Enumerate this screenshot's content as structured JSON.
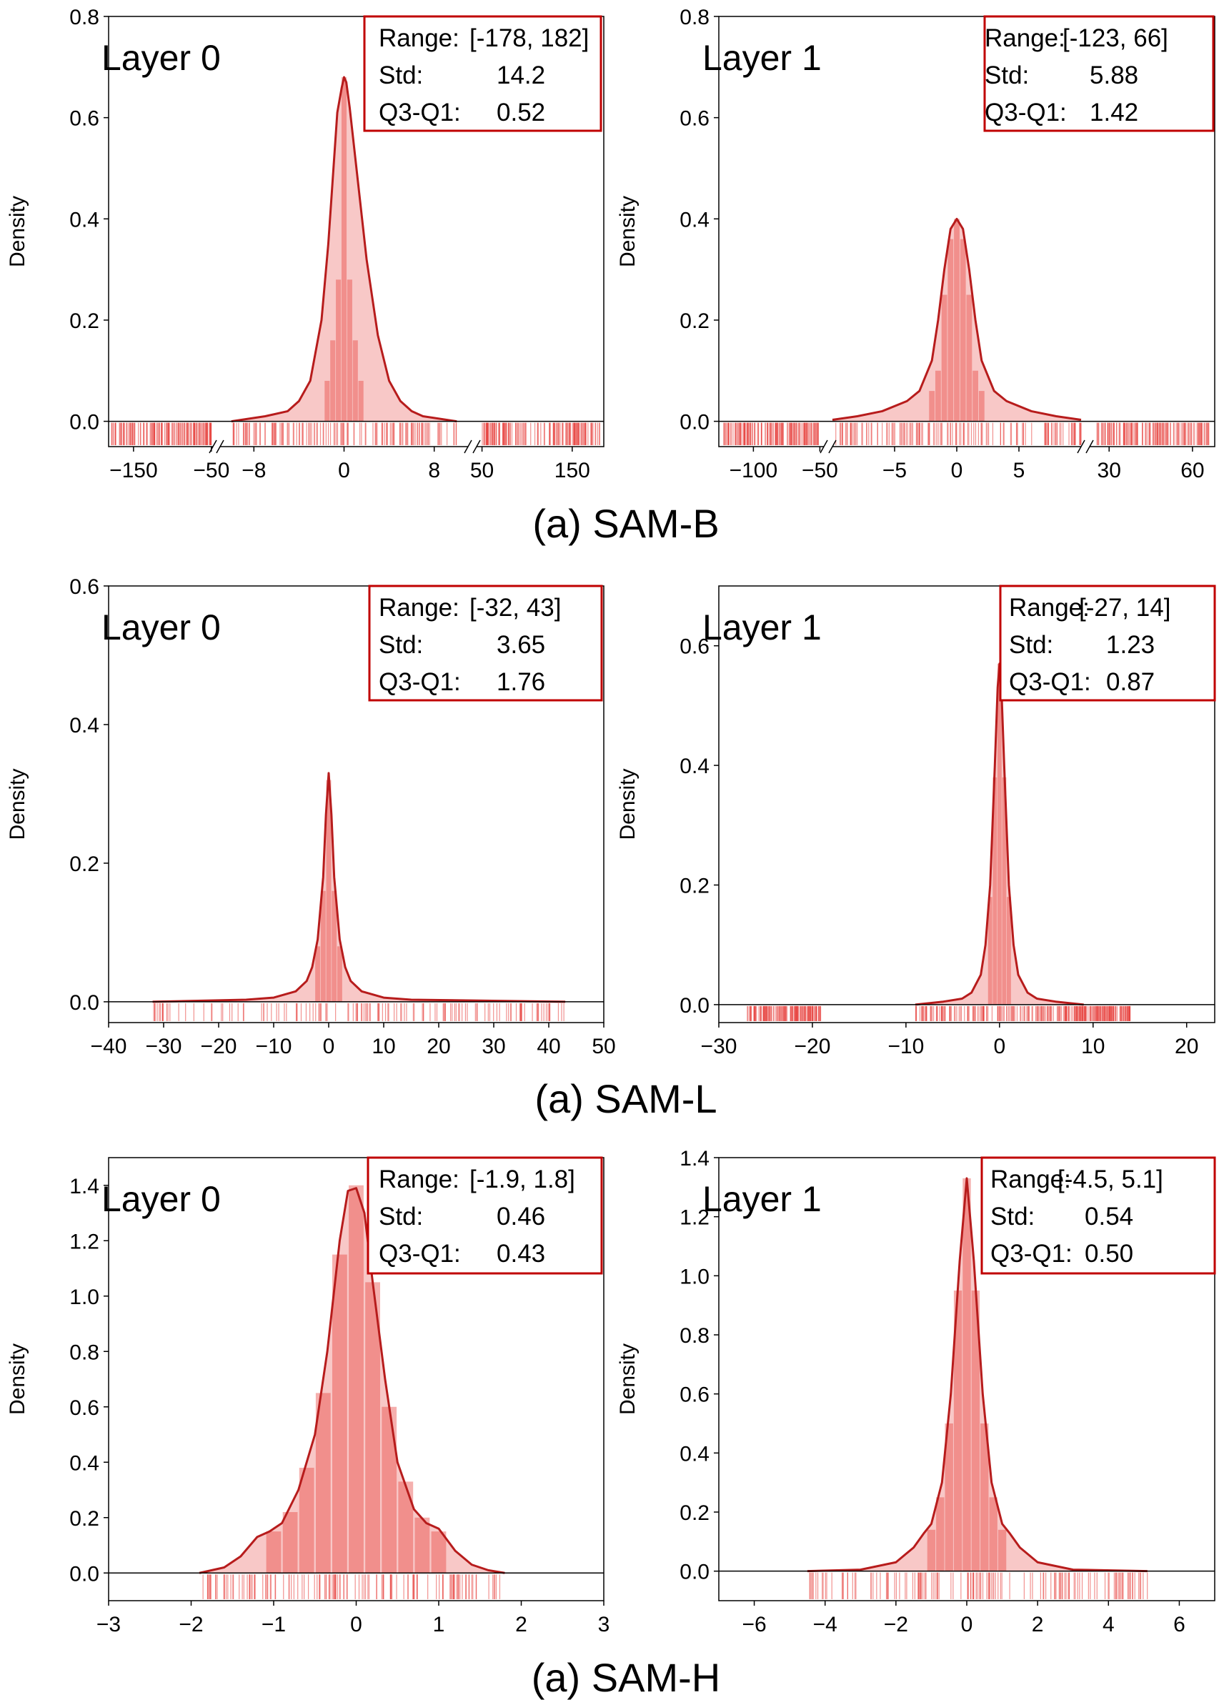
{
  "colors": {
    "curve": "#b71c1c",
    "fill": "#e53935",
    "rug": "#e53935",
    "box": "#c00000",
    "axis": "#000000"
  },
  "captions": [
    "(a) SAM-B",
    "(a) SAM-L",
    "(a) SAM-H"
  ],
  "chart_data": [
    {
      "id": "sam-b-layer-0",
      "type": "histogram-kde-rug",
      "title": "Layer 0",
      "ylabel": "Density",
      "ylim": [
        -0.05,
        0.8
      ],
      "yticks": [
        "0.0",
        "0.2",
        "0.4",
        "0.6",
        "0.8"
      ],
      "ytick_values": [
        0,
        0.2,
        0.4,
        0.6,
        0.8
      ],
      "broken_axis": true,
      "xsegments": [
        {
          "range": [
            -182,
            -48
          ],
          "ticks": [
            -150,
            -50
          ],
          "labels": [
            "−150",
            "−50"
          ]
        },
        {
          "range": [
            -11,
            11
          ],
          "ticks": [
            -8,
            0,
            8
          ],
          "labels": [
            "−8",
            "0",
            "8"
          ]
        },
        {
          "range": [
            44,
            185
          ],
          "ticks": [
            50,
            150
          ],
          "labels": [
            "50",
            "150"
          ]
        }
      ],
      "stats": {
        "range_label": "Range:",
        "range": "[-178, 182]",
        "std_label": "Std:",
        "std": "14.2",
        "iqr_label": "Q3-Q1:",
        "iqr": "0.52"
      },
      "kde": {
        "x": [
          -10,
          -7,
          -5,
          -4,
          -3,
          -2,
          -1.4,
          -1,
          -0.6,
          -0.2,
          0,
          0.2,
          0.5,
          1,
          1.5,
          2,
          3,
          4,
          5,
          6,
          7,
          10
        ],
        "y": [
          0,
          0.01,
          0.02,
          0.04,
          0.08,
          0.2,
          0.35,
          0.48,
          0.61,
          0.66,
          0.68,
          0.67,
          0.62,
          0.52,
          0.42,
          0.32,
          0.17,
          0.08,
          0.04,
          0.02,
          0.01,
          0
        ]
      },
      "hist": {
        "x": [
          -1.5,
          -1,
          -0.5,
          0,
          0.5,
          1,
          1.5
        ],
        "y": [
          0.08,
          0.16,
          0.28,
          0.68,
          0.28,
          0.16,
          0.08
        ],
        "w": 0.45
      },
      "rug": [
        [
          -178,
          -50
        ],
        [
          -10,
          10
        ],
        [
          50,
          182
        ]
      ]
    },
    {
      "id": "sam-b-layer-1",
      "type": "histogram-kde-rug",
      "title": "Layer 1",
      "ylabel": "Density",
      "ylim": [
        -0.05,
        0.8
      ],
      "yticks": [
        "0.0",
        "0.2",
        "0.4",
        "0.6",
        "0.8"
      ],
      "ytick_values": [
        0,
        0.2,
        0.4,
        0.6,
        0.8
      ],
      "broken_axis": true,
      "xsegments": [
        {
          "range": [
            -126,
            -47
          ],
          "ticks": [
            -100,
            -50
          ],
          "labels": [
            "−100",
            "−50"
          ]
        },
        {
          "range": [
            -10,
            10
          ],
          "ticks": [
            -5,
            0,
            5
          ],
          "labels": [
            "−5",
            "0",
            "5"
          ]
        },
        {
          "range": [
            23,
            68
          ],
          "ticks": [
            30,
            60
          ],
          "labels": [
            "30",
            "60"
          ]
        }
      ],
      "stats": {
        "range_label": "Range:",
        "range": "[-123, 66]",
        "std_label": "Std:",
        "std": "5.88",
        "iqr_label": "Q3-Q1:",
        "iqr": "1.42"
      },
      "kde": {
        "x": [
          -10,
          -8,
          -6,
          -4,
          -3,
          -2,
          -1.5,
          -1,
          -0.5,
          0,
          0.5,
          1,
          1.5,
          2,
          3,
          4,
          6,
          8,
          10
        ],
        "y": [
          0.003,
          0.01,
          0.02,
          0.04,
          0.06,
          0.12,
          0.2,
          0.3,
          0.38,
          0.4,
          0.38,
          0.3,
          0.2,
          0.12,
          0.06,
          0.04,
          0.02,
          0.01,
          0.003
        ]
      },
      "hist": {
        "x": [
          -2,
          -1.5,
          -1,
          -0.5,
          0,
          0.5,
          1,
          1.5,
          2
        ],
        "y": [
          0.06,
          0.1,
          0.25,
          0.36,
          0.4,
          0.36,
          0.25,
          0.1,
          0.06
        ],
        "w": 0.45
      },
      "rug": [
        [
          -123,
          -50
        ],
        [
          -10,
          10
        ],
        [
          25,
          66
        ]
      ]
    },
    {
      "id": "sam-l-layer-0",
      "type": "histogram-kde-rug",
      "title": "Layer 0",
      "ylabel": "Density",
      "xlim": [
        -40,
        50
      ],
      "ylim": [
        -0.03,
        0.6
      ],
      "xticks": [
        -40,
        -30,
        -20,
        -10,
        0,
        10,
        20,
        30,
        40,
        50
      ],
      "xtick_labels": [
        "−40",
        "−30",
        "−20",
        "−10",
        "0",
        "10",
        "20",
        "30",
        "40",
        "50"
      ],
      "yticks": [
        "0.0",
        "0.2",
        "0.4",
        "0.6"
      ],
      "ytick_values": [
        0,
        0.2,
        0.4,
        0.6
      ],
      "stats": {
        "range_label": "Range:",
        "range": "[-32, 43]",
        "std_label": "Std:",
        "std": "3.65",
        "iqr_label": "Q3-Q1:",
        "iqr": "1.76"
      },
      "kde": {
        "x": [
          -32,
          -15,
          -10,
          -6,
          -4,
          -3,
          -2,
          -1,
          -0.5,
          0,
          0.5,
          1,
          2,
          3,
          4,
          6,
          10,
          15,
          43
        ],
        "y": [
          0,
          0.003,
          0.006,
          0.015,
          0.03,
          0.05,
          0.09,
          0.18,
          0.27,
          0.33,
          0.27,
          0.18,
          0.09,
          0.05,
          0.03,
          0.015,
          0.006,
          0.003,
          0
        ]
      },
      "hist": {
        "x": [
          -2,
          -1,
          0,
          1,
          2
        ],
        "y": [
          0.08,
          0.16,
          0.32,
          0.16,
          0.08
        ],
        "w": 0.9
      },
      "rug": [
        [
          -32,
          43
        ]
      ]
    },
    {
      "id": "sam-l-layer-1",
      "type": "histogram-kde-rug",
      "title": "Layer 1",
      "ylabel": "Density",
      "xlim": [
        -30,
        23
      ],
      "ylim": [
        -0.03,
        0.7
      ],
      "xticks": [
        -30,
        -20,
        -10,
        0,
        10,
        20
      ],
      "xtick_labels": [
        "−30",
        "−20",
        "−10",
        "0",
        "10",
        "20"
      ],
      "yticks": [
        "0.0",
        "0.2",
        "0.4",
        "0.6"
      ],
      "ytick_values": [
        0,
        0.2,
        0.4,
        0.6
      ],
      "stats": {
        "range_label": "Range:",
        "range": "[-27, 14]",
        "std_label": "Std:",
        "std": "1.23",
        "iqr_label": "Q3-Q1:",
        "iqr": "0.87"
      },
      "kde": {
        "x": [
          -9,
          -6,
          -4,
          -3,
          -2,
          -1.5,
          -1,
          -0.5,
          -0.2,
          0,
          0.2,
          0.5,
          1,
          1.5,
          2,
          3,
          4,
          6,
          9
        ],
        "y": [
          0,
          0.005,
          0.01,
          0.02,
          0.05,
          0.1,
          0.2,
          0.4,
          0.53,
          0.57,
          0.53,
          0.4,
          0.2,
          0.1,
          0.05,
          0.02,
          0.01,
          0.005,
          0
        ]
      },
      "hist": {
        "x": [
          -1,
          -0.5,
          0,
          0.5,
          1
        ],
        "y": [
          0.18,
          0.38,
          0.57,
          0.38,
          0.18
        ],
        "w": 0.45
      },
      "rug": [
        [
          -27,
          -19
        ],
        [
          -9,
          7
        ],
        [
          7,
          14
        ]
      ]
    },
    {
      "id": "sam-h-layer-0",
      "type": "histogram-kde-rug",
      "title": "Layer 0",
      "ylabel": "Density",
      "xlim": [
        -3,
        3
      ],
      "ylim": [
        -0.1,
        1.5
      ],
      "xticks": [
        -3,
        -2,
        -1,
        0,
        1,
        2,
        3
      ],
      "xtick_labels": [
        "−3",
        "−2",
        "−1",
        "0",
        "1",
        "2",
        "3"
      ],
      "yticks": [
        "0.0",
        "0.2",
        "0.4",
        "0.6",
        "0.8",
        "1.0",
        "1.2",
        "1.4"
      ],
      "ytick_values": [
        0,
        0.2,
        0.4,
        0.6,
        0.8,
        1.0,
        1.2,
        1.4
      ],
      "stats": {
        "range_label": "Range:",
        "range": "[-1.9, 1.8]",
        "std_label": "Std:",
        "std": "0.46",
        "iqr_label": "Q3-Q1:",
        "iqr": "0.43"
      },
      "kde": {
        "x": [
          -1.9,
          -1.6,
          -1.4,
          -1.2,
          -1.05,
          -0.9,
          -0.7,
          -0.5,
          -0.35,
          -0.2,
          -0.1,
          0,
          0.1,
          0.2,
          0.35,
          0.5,
          0.7,
          0.85,
          1.0,
          1.2,
          1.4,
          1.6,
          1.8
        ],
        "y": [
          0,
          0.02,
          0.06,
          0.13,
          0.15,
          0.18,
          0.3,
          0.5,
          0.8,
          1.2,
          1.38,
          1.39,
          1.3,
          1.05,
          0.7,
          0.4,
          0.23,
          0.18,
          0.16,
          0.08,
          0.03,
          0.01,
          0
        ]
      },
      "hist": {
        "x": [
          -1.0,
          -0.8,
          -0.6,
          -0.4,
          -0.2,
          0,
          0.2,
          0.4,
          0.6,
          0.8,
          1.0
        ],
        "y": [
          0.15,
          0.22,
          0.38,
          0.65,
          1.15,
          1.4,
          1.05,
          0.6,
          0.33,
          0.2,
          0.15
        ],
        "w": 0.18
      },
      "rug": [
        [
          -1.9,
          1.8
        ]
      ]
    },
    {
      "id": "sam-h-layer-1",
      "type": "histogram-kde-rug",
      "title": "Layer 1",
      "ylabel": "Density",
      "xlim": [
        -7,
        7
      ],
      "ylim": [
        -0.1,
        1.4
      ],
      "xticks": [
        -6,
        -4,
        -2,
        0,
        2,
        4,
        6
      ],
      "xtick_labels": [
        "−6",
        "−4",
        "−2",
        "0",
        "2",
        "4",
        "6"
      ],
      "yticks": [
        "0.0",
        "0.2",
        "0.4",
        "0.6",
        "0.8",
        "1.0",
        "1.2",
        "1.4"
      ],
      "ytick_values": [
        0,
        0.2,
        0.4,
        0.6,
        0.8,
        1.0,
        1.2,
        1.4
      ],
      "stats": {
        "range_label": "Range:",
        "range": "[-4.5, 5.1]",
        "std_label": "Std:",
        "std": "0.54",
        "iqr_label": "Q3-Q1:",
        "iqr": "0.50"
      },
      "kde": {
        "x": [
          -4.5,
          -3,
          -2,
          -1.5,
          -1.2,
          -1,
          -0.7,
          -0.45,
          -0.2,
          0,
          0.2,
          0.45,
          0.7,
          1,
          1.2,
          1.5,
          2,
          3,
          5.1
        ],
        "y": [
          0,
          0.005,
          0.03,
          0.08,
          0.13,
          0.16,
          0.3,
          0.6,
          1.05,
          1.33,
          1.05,
          0.6,
          0.3,
          0.16,
          0.13,
          0.08,
          0.03,
          0.005,
          0
        ]
      },
      "hist": {
        "x": [
          -1,
          -0.75,
          -0.5,
          -0.25,
          0,
          0.25,
          0.5,
          0.75,
          1
        ],
        "y": [
          0.14,
          0.25,
          0.5,
          0.95,
          1.33,
          0.95,
          0.5,
          0.25,
          0.14
        ],
        "w": 0.23
      },
      "rug": [
        [
          -4.5,
          5.1
        ]
      ]
    }
  ]
}
